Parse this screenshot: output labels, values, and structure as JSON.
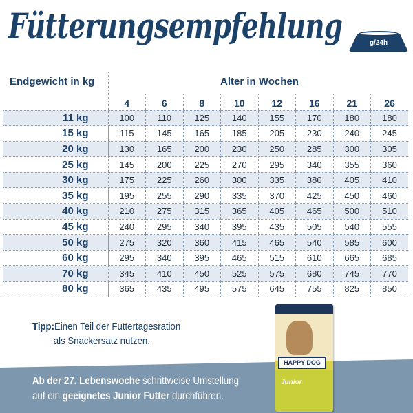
{
  "title": "Fütterungsempfehlung",
  "unit_badge": "g/24h",
  "table": {
    "weight_header": "Endgewicht in kg",
    "age_header": "Alter in Wochen",
    "weeks": [
      "4",
      "6",
      "8",
      "10",
      "12",
      "16",
      "21",
      "26"
    ],
    "rows": [
      {
        "weight": "11 kg",
        "values": [
          "100",
          "110",
          "125",
          "140",
          "155",
          "170",
          "180",
          "180"
        ]
      },
      {
        "weight": "15 kg",
        "values": [
          "115",
          "145",
          "165",
          "185",
          "205",
          "230",
          "240",
          "245"
        ]
      },
      {
        "weight": "20 kg",
        "values": [
          "130",
          "165",
          "200",
          "230",
          "250",
          "285",
          "300",
          "305"
        ]
      },
      {
        "weight": "25 kg",
        "values": [
          "145",
          "200",
          "225",
          "270",
          "295",
          "340",
          "355",
          "360"
        ]
      },
      {
        "weight": "30 kg",
        "values": [
          "175",
          "225",
          "260",
          "300",
          "335",
          "380",
          "405",
          "410"
        ]
      },
      {
        "weight": "35 kg",
        "values": [
          "195",
          "255",
          "290",
          "335",
          "370",
          "425",
          "450",
          "460"
        ]
      },
      {
        "weight": "40 kg",
        "values": [
          "210",
          "275",
          "315",
          "365",
          "405",
          "465",
          "500",
          "510"
        ]
      },
      {
        "weight": "45 kg",
        "values": [
          "240",
          "295",
          "340",
          "395",
          "435",
          "505",
          "540",
          "555"
        ]
      },
      {
        "weight": "50 kg",
        "values": [
          "275",
          "320",
          "360",
          "415",
          "465",
          "540",
          "585",
          "600"
        ]
      },
      {
        "weight": "60 kg",
        "values": [
          "295",
          "340",
          "395",
          "465",
          "515",
          "610",
          "665",
          "685"
        ]
      },
      {
        "weight": "70 kg",
        "values": [
          "345",
          "410",
          "450",
          "525",
          "575",
          "680",
          "745",
          "770"
        ]
      },
      {
        "weight": "80 kg",
        "values": [
          "365",
          "435",
          "495",
          "575",
          "645",
          "755",
          "825",
          "850"
        ]
      }
    ]
  },
  "tip": {
    "label": "Tipp:",
    "line1": "Einen Teil der Futtertagesration",
    "line2": "als Snackersatz nutzen."
  },
  "banner": {
    "b1": "Ab der 27. Lebenswoche",
    "t1": " schrittweise Umstellung",
    "t2": "auf ein ",
    "b2": "geeignetes Junior Futter",
    "t3": " durchführen."
  },
  "product": {
    "brand": "HAPPY DOG",
    "name": "Junior"
  },
  "colors": {
    "navy": "#1d4269",
    "row_shade": "#e4eaf2",
    "band": "#7d97ae"
  }
}
